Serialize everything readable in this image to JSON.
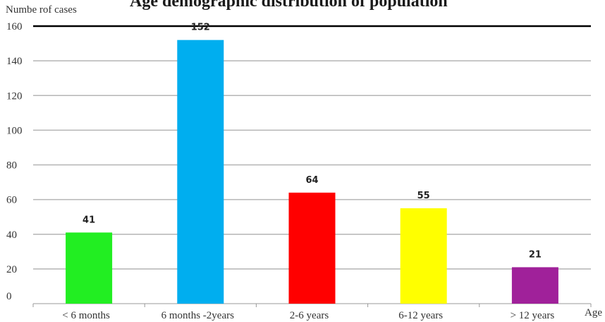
{
  "chart_data": {
    "type": "bar",
    "title": "Age demographic distribution of population",
    "ylabel": "Numbe rof cases",
    "xlabel": "Age",
    "categories": [
      "< 6 months",
      "6 months -2years",
      "2-6 years",
      "6-12 years",
      "> 12 years"
    ],
    "values": [
      41,
      152,
      64,
      55,
      21
    ],
    "colors": [
      "#22ee22",
      "#00aeef",
      "#ff0000",
      "#ffff00",
      "#a0219a"
    ],
    "ylim": [
      0,
      160
    ],
    "yticks": [
      0,
      20,
      40,
      60,
      80,
      100,
      120,
      140,
      160
    ],
    "grid": true,
    "legend": "none"
  }
}
